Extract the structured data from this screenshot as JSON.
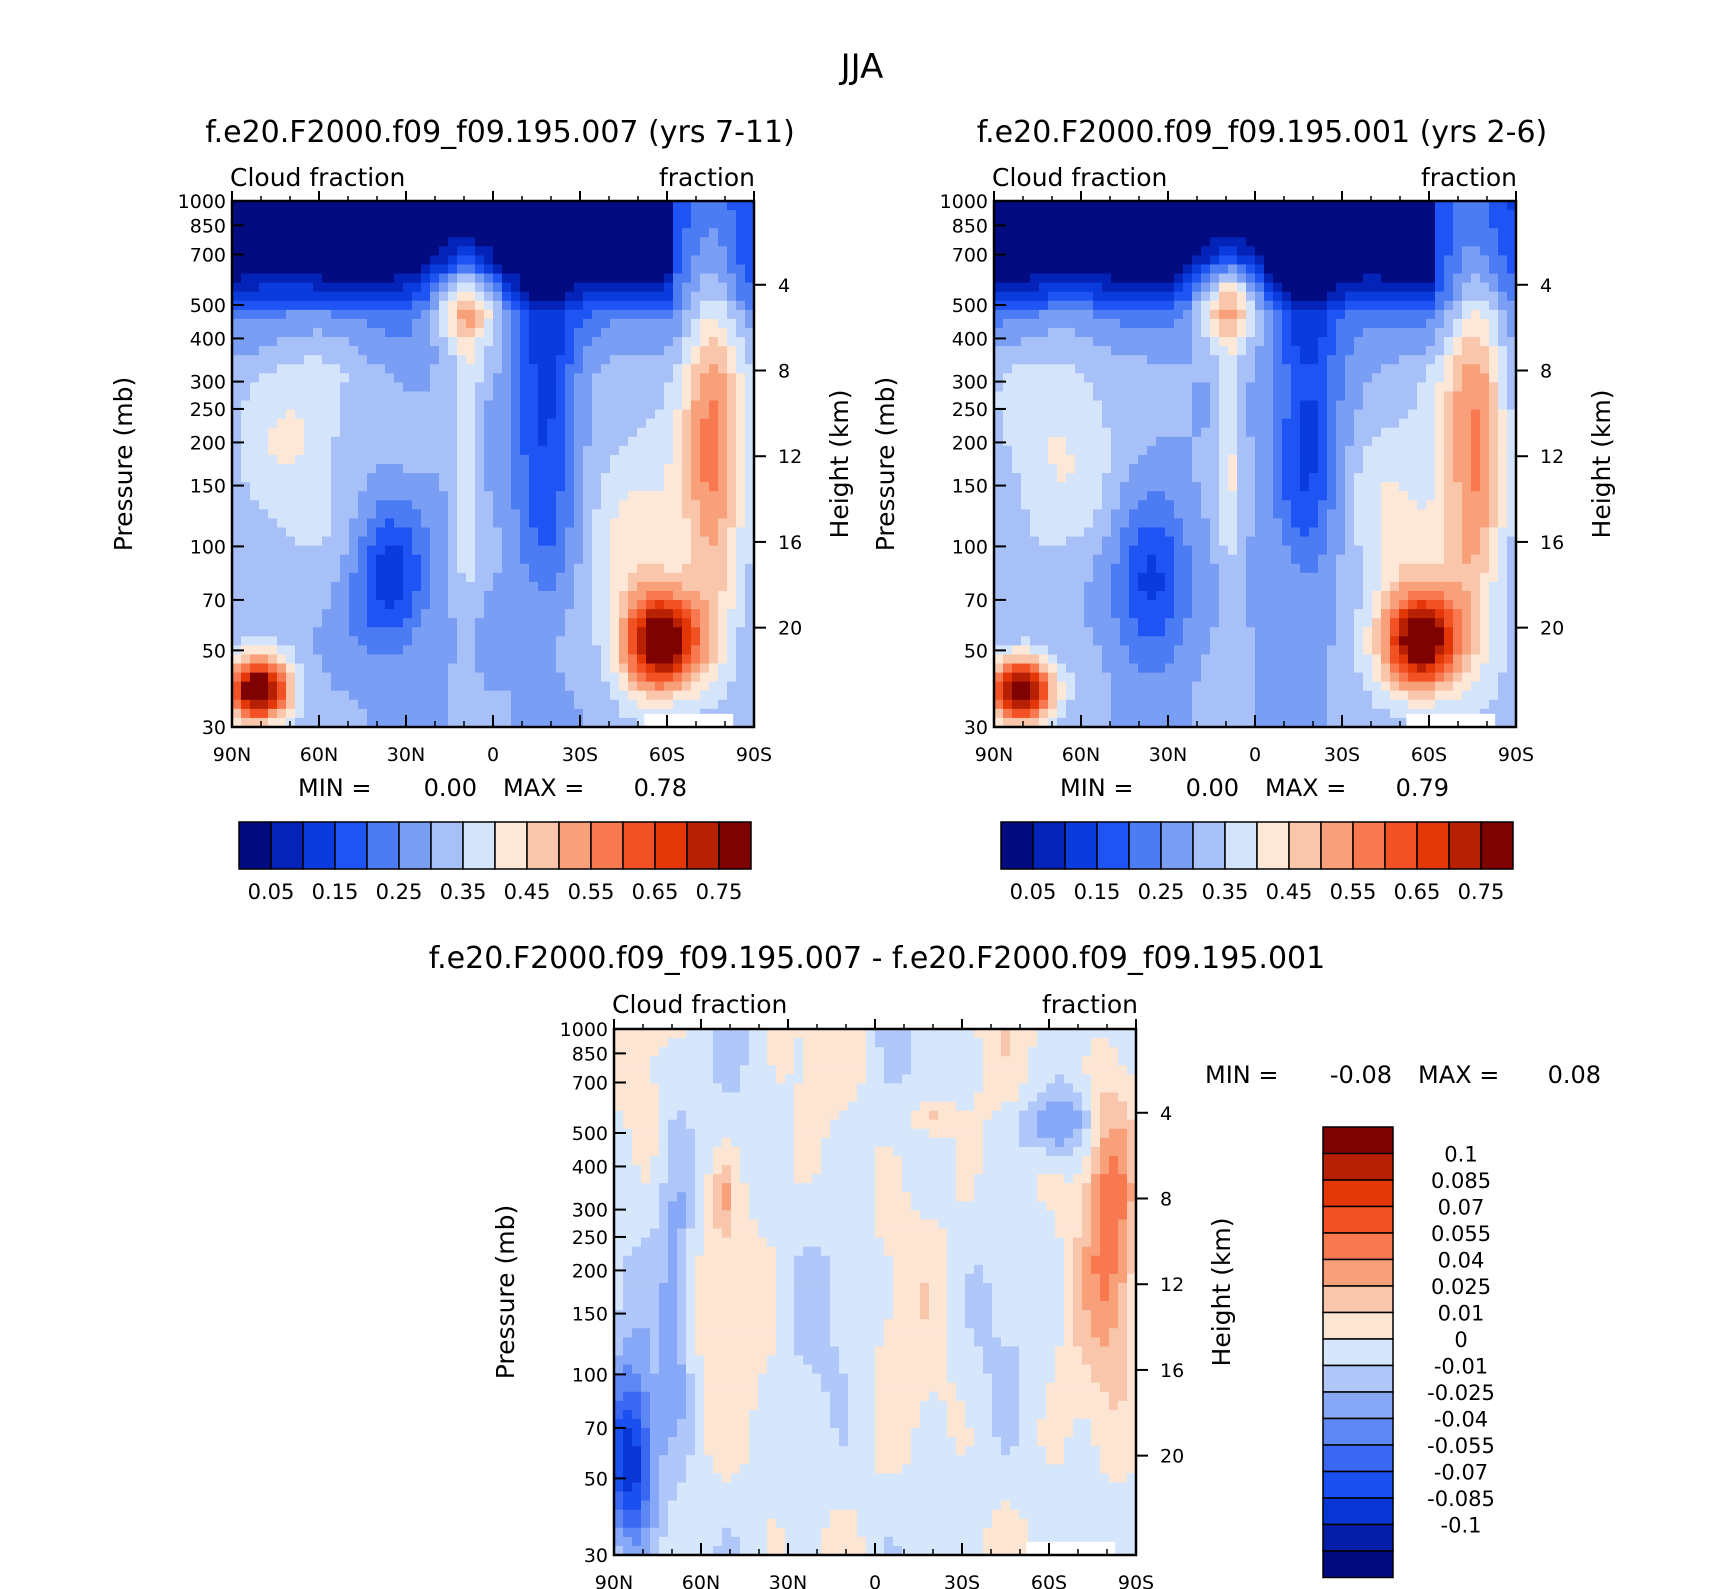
{
  "figure": {
    "title": "JJA",
    "palettes": {
      "abs": [
        "#030b80",
        "#0423b8",
        "#0a3bdc",
        "#1f54f4",
        "#4c7cf4",
        "#7a9ef4",
        "#a8c0f8",
        "#d3e4fb",
        "#fde8d8",
        "#f9c6ac",
        "#f8a07a",
        "#f87850",
        "#f25223",
        "#e43708",
        "#b82003",
        "#7f0202"
      ],
      "diff": [
        "#030b80",
        "#041ea8",
        "#0836d4",
        "#1a4ff0",
        "#3a68f2",
        "#5d88f4",
        "#87a8f6",
        "#b0c8f9",
        "#d6e6fb",
        "#fde5d4",
        "#f9c6ac",
        "#f8a07a",
        "#f87850",
        "#f25223",
        "#e43708",
        "#b82003",
        "#7f0202"
      ]
    }
  },
  "chart_data": [
    {
      "type": "heatmap",
      "title": "f.e20.F2000.f09_f09.195.007 (yrs 7-11)",
      "left_string": "Cloud fraction",
      "right_string": "fraction",
      "xlabel": "",
      "ylabel": "Pressure (mb)",
      "ylabel_right": "Height (km)",
      "x_ticks": [
        "90N",
        "60N",
        "30N",
        "0",
        "30S",
        "60S",
        "90S"
      ],
      "y_ticks": [
        "30",
        "50",
        "70",
        "100",
        "150",
        "200",
        "250",
        "300",
        "400",
        "500",
        "700",
        "850",
        "1000"
      ],
      "y_ticks_right": [
        "20",
        "16",
        "12",
        "8",
        "4"
      ],
      "colorbar_labels": [
        "0.05",
        "0.15",
        "0.25",
        "0.35",
        "0.45",
        "0.55",
        "0.65",
        "0.75"
      ],
      "min_label": "MIN =",
      "min_value": "0.00",
      "max_label": "MAX =",
      "max_value": "0.78",
      "xlim": [
        90,
        -90
      ],
      "ylim": [
        1000,
        30
      ],
      "y_scale": "log"
    },
    {
      "type": "heatmap",
      "title": "f.e20.F2000.f09_f09.195.001 (yrs 2-6)",
      "left_string": "Cloud fraction",
      "right_string": "fraction",
      "xlabel": "",
      "ylabel": "Pressure (mb)",
      "ylabel_right": "Height (km)",
      "x_ticks": [
        "90N",
        "60N",
        "30N",
        "0",
        "30S",
        "60S",
        "90S"
      ],
      "y_ticks": [
        "30",
        "50",
        "70",
        "100",
        "150",
        "200",
        "250",
        "300",
        "400",
        "500",
        "700",
        "850",
        "1000"
      ],
      "y_ticks_right": [
        "20",
        "16",
        "12",
        "8",
        "4"
      ],
      "colorbar_labels": [
        "0.05",
        "0.15",
        "0.25",
        "0.35",
        "0.45",
        "0.55",
        "0.65",
        "0.75"
      ],
      "min_label": "MIN =",
      "min_value": "0.00",
      "max_label": "MAX =",
      "max_value": "0.79",
      "xlim": [
        90,
        -90
      ],
      "ylim": [
        1000,
        30
      ],
      "y_scale": "log"
    },
    {
      "type": "heatmap",
      "title": "f.e20.F2000.f09_f09.195.007 - f.e20.F2000.f09_f09.195.001",
      "left_string": "Cloud fraction",
      "right_string": "fraction",
      "xlabel": "",
      "ylabel": "Pressure (mb)",
      "ylabel_right": "Height (km)",
      "x_ticks": [
        "90N",
        "60N",
        "30N",
        "0",
        "30S",
        "60S",
        "90S"
      ],
      "y_ticks": [
        "30",
        "50",
        "70",
        "100",
        "150",
        "200",
        "250",
        "300",
        "400",
        "500",
        "700",
        "850",
        "1000"
      ],
      "y_ticks_right": [
        "20",
        "16",
        "12",
        "8",
        "4"
      ],
      "colorbar_labels": [
        "0.1",
        "0.085",
        "0.07",
        "0.055",
        "0.04",
        "0.025",
        "0.01",
        "0",
        "-0.01",
        "-0.025",
        "-0.04",
        "-0.055",
        "-0.07",
        "-0.085",
        "-0.1"
      ],
      "min_label": "MIN =",
      "min_value": "-0.08",
      "max_label": "MAX =",
      "max_value": "0.08",
      "xlim": [
        90,
        -90
      ],
      "ylim": [
        1000,
        30
      ],
      "y_scale": "log"
    }
  ]
}
